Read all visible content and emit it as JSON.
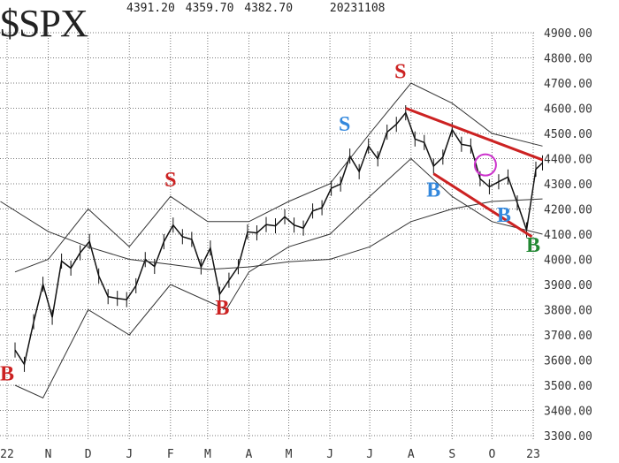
{
  "chart_data": {
    "type": "line",
    "title": "$SPX",
    "header_values": {
      "high": "4391.20",
      "low": "4359.70",
      "close": "4382.70",
      "date": "20231108"
    },
    "x_tick_labels": [
      {
        "date": "2022-10-01",
        "label": "22"
      },
      {
        "date": "2022-11-01",
        "label": "N"
      },
      {
        "date": "2022-12-01",
        "label": "D"
      },
      {
        "date": "2023-01-01",
        "label": "J"
      },
      {
        "date": "2023-02-01",
        "label": "F"
      },
      {
        "date": "2023-03-01",
        "label": "M"
      },
      {
        "date": "2023-04-01",
        "label": "A"
      },
      {
        "date": "2023-05-01",
        "label": "M"
      },
      {
        "date": "2023-06-01",
        "label": "J"
      },
      {
        "date": "2023-07-01",
        "label": "J"
      },
      {
        "date": "2023-08-01",
        "label": "A"
      },
      {
        "date": "2023-09-01",
        "label": "S"
      },
      {
        "date": "2023-10-01",
        "label": "O"
      },
      {
        "date": "2023-11-01",
        "label": "23"
      }
    ],
    "y_tick_labels": [
      "4900.00",
      "4800.00",
      "4700.00",
      "4600.00",
      "4500.00",
      "4400.00",
      "4300.00",
      "4200.00",
      "4100.00",
      "4000.00",
      "3900.00",
      "3800.00",
      "3700.00",
      "3600.00",
      "3500.00",
      "3400.00",
      "3300.00"
    ],
    "ylim": [
      3300,
      4900
    ],
    "xlim": [
      "2022-09-26",
      "2023-11-08"
    ],
    "grid": true,
    "series": [
      {
        "key": "price",
        "color": "#111111",
        "points": [
          [
            "2022-10-07",
            3640
          ],
          [
            "2022-10-14",
            3583
          ],
          [
            "2022-10-21",
            3752
          ],
          [
            "2022-10-28",
            3901
          ],
          [
            "2022-11-04",
            3770
          ],
          [
            "2022-11-11",
            3993
          ],
          [
            "2022-11-18",
            3965
          ],
          [
            "2022-11-25",
            4026
          ],
          [
            "2022-12-02",
            4071
          ],
          [
            "2022-12-09",
            3934
          ],
          [
            "2022-12-16",
            3852
          ],
          [
            "2022-12-23",
            3845
          ],
          [
            "2022-12-30",
            3840
          ],
          [
            "2023-01-06",
            3895
          ],
          [
            "2023-01-13",
            3999
          ],
          [
            "2023-01-20",
            3972
          ],
          [
            "2023-01-27",
            4070
          ],
          [
            "2023-02-03",
            4136
          ],
          [
            "2023-02-10",
            4090
          ],
          [
            "2023-02-17",
            4079
          ],
          [
            "2023-02-24",
            3970
          ],
          [
            "2023-03-03",
            4045
          ],
          [
            "2023-03-10",
            3861
          ],
          [
            "2023-03-17",
            3917
          ],
          [
            "2023-03-24",
            3971
          ],
          [
            "2023-03-31",
            4109
          ],
          [
            "2023-04-07",
            4105
          ],
          [
            "2023-04-14",
            4138
          ],
          [
            "2023-04-21",
            4133
          ],
          [
            "2023-04-28",
            4169
          ],
          [
            "2023-05-05",
            4136
          ],
          [
            "2023-05-12",
            4124
          ],
          [
            "2023-05-19",
            4192
          ],
          [
            "2023-05-26",
            4205
          ],
          [
            "2023-06-02",
            4282
          ],
          [
            "2023-06-09",
            4299
          ],
          [
            "2023-06-16",
            4410
          ],
          [
            "2023-06-23",
            4348
          ],
          [
            "2023-06-30",
            4450
          ],
          [
            "2023-07-07",
            4399
          ],
          [
            "2023-07-14",
            4505
          ],
          [
            "2023-07-21",
            4536
          ],
          [
            "2023-07-28",
            4582
          ],
          [
            "2023-08-04",
            4478
          ],
          [
            "2023-08-11",
            4464
          ],
          [
            "2023-08-18",
            4370
          ],
          [
            "2023-08-25",
            4406
          ],
          [
            "2023-09-01",
            4515
          ],
          [
            "2023-09-08",
            4457
          ],
          [
            "2023-09-15",
            4450
          ],
          [
            "2023-09-22",
            4320
          ],
          [
            "2023-09-29",
            4288
          ],
          [
            "2023-10-06",
            4308
          ],
          [
            "2023-10-13",
            4327
          ],
          [
            "2023-10-20",
            4224
          ],
          [
            "2023-10-27",
            4117
          ],
          [
            "2023-11-03",
            4358
          ],
          [
            "2023-11-08",
            4383
          ]
        ]
      },
      {
        "key": "slow_average",
        "color": "#333333",
        "points": [
          [
            "2022-09-26",
            4230
          ],
          [
            "2022-11-01",
            4110
          ],
          [
            "2022-12-01",
            4050
          ],
          [
            "2023-01-01",
            4000
          ],
          [
            "2023-02-01",
            3980
          ],
          [
            "2023-03-01",
            3960
          ],
          [
            "2023-04-01",
            3970
          ],
          [
            "2023-05-01",
            3990
          ],
          [
            "2023-06-01",
            4000
          ],
          [
            "2023-07-01",
            4050
          ],
          [
            "2023-08-01",
            4150
          ],
          [
            "2023-09-01",
            4200
          ],
          [
            "2023-10-01",
            4230
          ],
          [
            "2023-11-08",
            4240
          ]
        ]
      },
      {
        "key": "upper_band",
        "color": "#333333",
        "points": [
          [
            "2022-10-07",
            3950
          ],
          [
            "2022-11-01",
            4000
          ],
          [
            "2022-12-01",
            4200
          ],
          [
            "2023-01-01",
            4050
          ],
          [
            "2023-02-01",
            4250
          ],
          [
            "2023-03-01",
            4150
          ],
          [
            "2023-04-01",
            4150
          ],
          [
            "2023-05-01",
            4230
          ],
          [
            "2023-06-01",
            4300
          ],
          [
            "2023-07-01",
            4500
          ],
          [
            "2023-08-01",
            4700
          ],
          [
            "2023-09-01",
            4620
          ],
          [
            "2023-10-01",
            4500
          ],
          [
            "2023-11-08",
            4450
          ]
        ]
      },
      {
        "key": "lower_band",
        "color": "#333333",
        "points": [
          [
            "2022-10-07",
            3500
          ],
          [
            "2022-10-28",
            3450
          ],
          [
            "2022-12-01",
            3800
          ],
          [
            "2023-01-01",
            3700
          ],
          [
            "2023-02-01",
            3900
          ],
          [
            "2023-03-15",
            3800
          ],
          [
            "2023-04-01",
            3950
          ],
          [
            "2023-05-01",
            4050
          ],
          [
            "2023-06-01",
            4100
          ],
          [
            "2023-07-01",
            4250
          ],
          [
            "2023-08-01",
            4400
          ],
          [
            "2023-09-01",
            4250
          ],
          [
            "2023-10-01",
            4150
          ],
          [
            "2023-11-08",
            4100
          ]
        ]
      }
    ],
    "trendlines": [
      {
        "color": "#cc2222",
        "from": [
          "2023-07-28",
          4600
        ],
        "to": [
          "2023-11-08",
          4395
        ]
      },
      {
        "color": "#cc2222",
        "from": [
          "2023-08-18",
          4340
        ],
        "to": [
          "2023-10-31",
          4090
        ]
      }
    ],
    "signals": [
      {
        "label": "B",
        "date": "2022-10-01",
        "value": 3520,
        "color": "#cc2222"
      },
      {
        "label": "S",
        "date": "2023-02-01",
        "value": 4290,
        "color": "#cc2222"
      },
      {
        "label": "B",
        "date": "2023-03-12",
        "value": 3780,
        "color": "#cc2222"
      },
      {
        "label": "S",
        "date": "2023-06-12",
        "value": 4510,
        "color": "#3388dd"
      },
      {
        "label": "S",
        "date": "2023-07-24",
        "value": 4720,
        "color": "#cc2222"
      },
      {
        "label": "B",
        "date": "2023-08-18",
        "value": 4250,
        "color": "#3388dd"
      },
      {
        "label": "B",
        "date": "2023-10-10",
        "value": 4150,
        "color": "#3388dd"
      },
      {
        "label": "B",
        "date": "2023-11-01",
        "value": 4030,
        "color": "#228833"
      }
    ],
    "circle_marker": {
      "date": "2023-09-26",
      "value": 4375,
      "color": "#cc33cc"
    }
  }
}
